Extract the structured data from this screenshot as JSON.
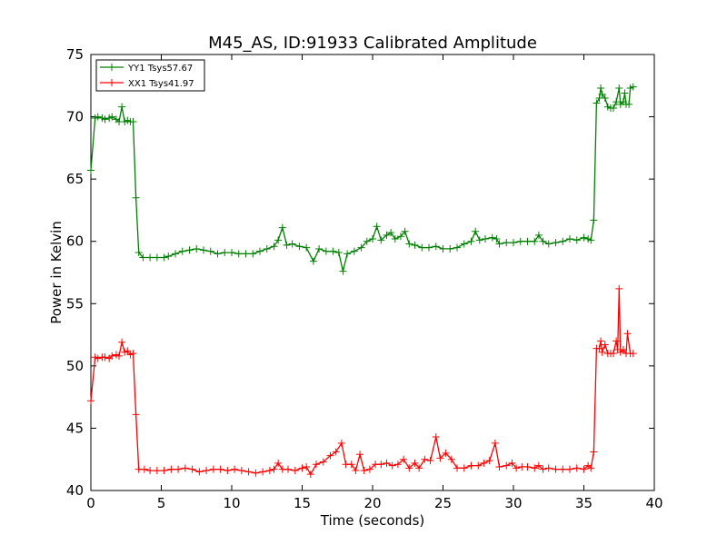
{
  "chart_data": {
    "type": "line",
    "title": "M45_AS, ID:91933 Calibrated Amplitude",
    "xlabel": "Time (seconds)",
    "ylabel": "Power in Kelvin",
    "xlim": [
      0,
      40
    ],
    "ylim": [
      40,
      75
    ],
    "x_ticks": [
      0,
      5,
      10,
      15,
      20,
      25,
      30,
      35,
      40
    ],
    "y_ticks": [
      40,
      45,
      50,
      55,
      60,
      65,
      70,
      75
    ],
    "grid": false,
    "legend_position": "top-left",
    "marker": "+",
    "series": [
      {
        "name": "YY1 Tsys57.67",
        "color": "#008000",
        "points": [
          [
            0.0,
            65.7
          ],
          [
            0.3,
            69.9
          ],
          [
            0.5,
            70.0
          ],
          [
            0.8,
            69.9
          ],
          [
            1.0,
            69.8
          ],
          [
            1.3,
            69.9
          ],
          [
            1.5,
            70.0
          ],
          [
            1.8,
            69.8
          ],
          [
            2.0,
            69.6
          ],
          [
            2.2,
            70.8
          ],
          [
            2.4,
            69.6
          ],
          [
            2.6,
            69.7
          ],
          [
            2.8,
            69.6
          ],
          [
            3.0,
            69.6
          ],
          [
            3.2,
            63.5
          ],
          [
            3.4,
            59.1
          ],
          [
            3.7,
            58.7
          ],
          [
            4.2,
            58.7
          ],
          [
            4.7,
            58.7
          ],
          [
            5.2,
            58.7
          ],
          [
            5.5,
            58.8
          ],
          [
            6.0,
            59.0
          ],
          [
            6.5,
            59.2
          ],
          [
            7.0,
            59.3
          ],
          [
            7.5,
            59.4
          ],
          [
            8.0,
            59.3
          ],
          [
            8.5,
            59.2
          ],
          [
            9.0,
            59.0
          ],
          [
            9.5,
            59.1
          ],
          [
            10.0,
            59.1
          ],
          [
            10.5,
            59.0
          ],
          [
            11.0,
            59.0
          ],
          [
            11.5,
            59.0
          ],
          [
            12.0,
            59.2
          ],
          [
            12.5,
            59.4
          ],
          [
            13.0,
            59.6
          ],
          [
            13.3,
            60.1
          ],
          [
            13.6,
            61.1
          ],
          [
            13.9,
            59.7
          ],
          [
            14.3,
            59.8
          ],
          [
            14.8,
            59.6
          ],
          [
            15.3,
            59.5
          ],
          [
            15.8,
            58.4
          ],
          [
            16.2,
            59.4
          ],
          [
            16.7,
            59.2
          ],
          [
            17.2,
            59.2
          ],
          [
            17.6,
            59.1
          ],
          [
            17.9,
            57.6
          ],
          [
            18.2,
            59.0
          ],
          [
            18.7,
            59.2
          ],
          [
            19.2,
            59.5
          ],
          [
            19.6,
            60.0
          ],
          [
            20.0,
            60.2
          ],
          [
            20.3,
            61.2
          ],
          [
            20.6,
            60.1
          ],
          [
            21.0,
            60.5
          ],
          [
            21.3,
            60.7
          ],
          [
            21.6,
            60.2
          ],
          [
            22.0,
            60.4
          ],
          [
            22.3,
            60.8
          ],
          [
            22.6,
            59.8
          ],
          [
            23.0,
            59.7
          ],
          [
            23.5,
            59.5
          ],
          [
            24.0,
            59.5
          ],
          [
            24.5,
            59.6
          ],
          [
            25.0,
            59.4
          ],
          [
            25.5,
            59.4
          ],
          [
            26.0,
            59.5
          ],
          [
            26.5,
            59.8
          ],
          [
            27.0,
            60.0
          ],
          [
            27.3,
            60.8
          ],
          [
            27.6,
            60.1
          ],
          [
            28.0,
            60.2
          ],
          [
            28.5,
            60.3
          ],
          [
            28.8,
            60.2
          ],
          [
            29.0,
            59.8
          ],
          [
            29.5,
            59.9
          ],
          [
            30.0,
            59.9
          ],
          [
            30.5,
            60.0
          ],
          [
            31.0,
            60.0
          ],
          [
            31.5,
            60.0
          ],
          [
            31.8,
            60.5
          ],
          [
            32.1,
            60.0
          ],
          [
            32.5,
            59.8
          ],
          [
            33.0,
            59.9
          ],
          [
            33.5,
            60.0
          ],
          [
            34.0,
            60.2
          ],
          [
            34.5,
            60.1
          ],
          [
            35.0,
            60.3
          ],
          [
            35.3,
            60.2
          ],
          [
            35.5,
            60.1
          ],
          [
            35.7,
            61.7
          ],
          [
            35.9,
            71.1
          ],
          [
            36.1,
            71.5
          ],
          [
            36.2,
            72.3
          ],
          [
            36.3,
            71.8
          ],
          [
            36.5,
            71.5
          ],
          [
            36.7,
            70.8
          ],
          [
            36.9,
            70.7
          ],
          [
            37.1,
            70.7
          ],
          [
            37.3,
            71.2
          ],
          [
            37.5,
            72.3
          ],
          [
            37.6,
            71.0
          ],
          [
            37.8,
            71.2
          ],
          [
            37.9,
            71.9
          ],
          [
            38.0,
            71.0
          ],
          [
            38.2,
            71.0
          ],
          [
            38.3,
            72.3
          ],
          [
            38.5,
            72.4
          ]
        ]
      },
      {
        "name": "XX1 Tsys41.97",
        "color": "#ff0000",
        "points": [
          [
            0.0,
            47.2
          ],
          [
            0.3,
            50.7
          ],
          [
            0.5,
            50.6
          ],
          [
            0.8,
            50.7
          ],
          [
            1.0,
            50.7
          ],
          [
            1.3,
            50.6
          ],
          [
            1.5,
            50.8
          ],
          [
            1.8,
            50.9
          ],
          [
            2.0,
            50.8
          ],
          [
            2.2,
            51.9
          ],
          [
            2.4,
            51.1
          ],
          [
            2.6,
            51.2
          ],
          [
            2.8,
            50.9
          ],
          [
            3.0,
            51.0
          ],
          [
            3.2,
            46.1
          ],
          [
            3.4,
            41.7
          ],
          [
            3.8,
            41.7
          ],
          [
            4.2,
            41.6
          ],
          [
            4.7,
            41.6
          ],
          [
            5.2,
            41.6
          ],
          [
            5.7,
            41.7
          ],
          [
            6.2,
            41.7
          ],
          [
            6.7,
            41.8
          ],
          [
            7.2,
            41.7
          ],
          [
            7.7,
            41.5
          ],
          [
            8.2,
            41.6
          ],
          [
            8.7,
            41.7
          ],
          [
            9.2,
            41.7
          ],
          [
            9.7,
            41.6
          ],
          [
            10.2,
            41.7
          ],
          [
            10.7,
            41.6
          ],
          [
            11.2,
            41.5
          ],
          [
            11.7,
            41.4
          ],
          [
            12.2,
            41.5
          ],
          [
            12.7,
            41.6
          ],
          [
            13.0,
            41.7
          ],
          [
            13.3,
            42.2
          ],
          [
            13.6,
            41.7
          ],
          [
            14.0,
            41.7
          ],
          [
            14.5,
            41.6
          ],
          [
            15.0,
            41.8
          ],
          [
            15.3,
            41.9
          ],
          [
            15.6,
            41.3
          ],
          [
            16.0,
            42.1
          ],
          [
            16.5,
            42.3
          ],
          [
            17.0,
            42.8
          ],
          [
            17.4,
            43.1
          ],
          [
            17.8,
            43.8
          ],
          [
            18.1,
            42.1
          ],
          [
            18.5,
            42.1
          ],
          [
            18.8,
            41.6
          ],
          [
            19.1,
            42.9
          ],
          [
            19.4,
            41.6
          ],
          [
            19.8,
            41.7
          ],
          [
            20.2,
            42.1
          ],
          [
            20.6,
            42.1
          ],
          [
            21.0,
            42.2
          ],
          [
            21.4,
            42.0
          ],
          [
            21.8,
            42.1
          ],
          [
            22.2,
            42.5
          ],
          [
            22.6,
            41.8
          ],
          [
            23.0,
            42.2
          ],
          [
            23.3,
            41.8
          ],
          [
            23.7,
            42.5
          ],
          [
            24.1,
            42.4
          ],
          [
            24.5,
            44.3
          ],
          [
            24.8,
            42.6
          ],
          [
            25.2,
            43.0
          ],
          [
            25.6,
            42.5
          ],
          [
            26.0,
            41.8
          ],
          [
            26.5,
            41.8
          ],
          [
            27.0,
            42.0
          ],
          [
            27.5,
            42.0
          ],
          [
            27.9,
            42.2
          ],
          [
            28.3,
            42.4
          ],
          [
            28.7,
            43.8
          ],
          [
            29.0,
            41.9
          ],
          [
            29.5,
            42.0
          ],
          [
            29.9,
            42.2
          ],
          [
            30.2,
            41.8
          ],
          [
            30.6,
            41.9
          ],
          [
            31.0,
            41.9
          ],
          [
            31.5,
            41.8
          ],
          [
            31.8,
            42.0
          ],
          [
            32.1,
            41.7
          ],
          [
            32.5,
            41.8
          ],
          [
            33.0,
            41.7
          ],
          [
            33.5,
            41.7
          ],
          [
            34.0,
            41.7
          ],
          [
            34.5,
            41.8
          ],
          [
            35.0,
            41.7
          ],
          [
            35.3,
            42.0
          ],
          [
            35.5,
            41.8
          ],
          [
            35.7,
            43.1
          ],
          [
            35.9,
            51.4
          ],
          [
            36.1,
            51.4
          ],
          [
            36.2,
            52.0
          ],
          [
            36.3,
            51.1
          ],
          [
            36.5,
            51.7
          ],
          [
            36.7,
            51.0
          ],
          [
            36.9,
            51.0
          ],
          [
            37.1,
            51.0
          ],
          [
            37.3,
            52.0
          ],
          [
            37.4,
            51.3
          ],
          [
            37.5,
            56.2
          ],
          [
            37.6,
            51.1
          ],
          [
            37.8,
            51.3
          ],
          [
            38.0,
            51.0
          ],
          [
            38.1,
            52.6
          ],
          [
            38.3,
            51.0
          ],
          [
            38.5,
            51.0
          ]
        ]
      }
    ]
  }
}
